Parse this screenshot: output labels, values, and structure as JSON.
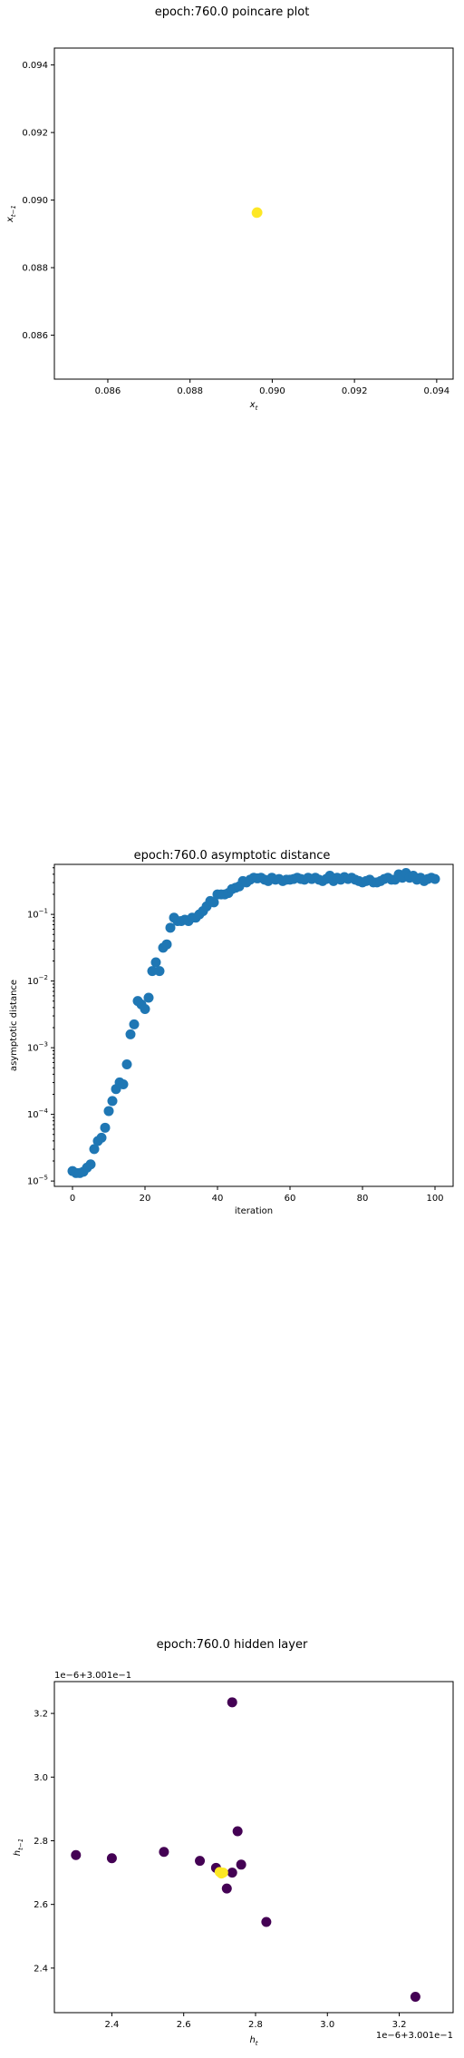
{
  "chart_data": [
    {
      "type": "scatter",
      "title": "epoch:760.0 poincare plot",
      "xlabel": "x_t",
      "ylabel": "x_{t-1}",
      "xlim": [
        0.0847,
        0.0944
      ],
      "ylim": [
        0.0847,
        0.0945
      ],
      "xticks": [
        {
          "v": 0.086,
          "label": "0.086"
        },
        {
          "v": 0.088,
          "label": "0.088"
        },
        {
          "v": 0.09,
          "label": "0.090"
        },
        {
          "v": 0.092,
          "label": "0.092"
        },
        {
          "v": 0.094,
          "label": "0.094"
        }
      ],
      "yticks": [
        {
          "v": 0.086,
          "label": "0.086"
        },
        {
          "v": 0.088,
          "label": "0.088"
        },
        {
          "v": 0.09,
          "label": "0.090"
        },
        {
          "v": 0.092,
          "label": "0.092"
        },
        {
          "v": 0.094,
          "label": "0.094"
        }
      ],
      "grid": false,
      "colors": [
        "#fde725"
      ],
      "points": [
        [
          0.08963,
          0.08964
        ],
        [
          0.08964,
          0.08963
        ],
        [
          0.08962,
          0.08962
        ]
      ]
    },
    {
      "type": "scatter",
      "title": "epoch:760.0 asymptotic distance",
      "xlabel": "iteration",
      "ylabel": "asymptotic distance",
      "log_y": true,
      "xlim": [
        -5,
        105
      ],
      "ylim_exp": [
        -5.08,
        -0.25
      ],
      "xticks": [
        {
          "v": 0,
          "label": "0"
        },
        {
          "v": 20,
          "label": "20"
        },
        {
          "v": 40,
          "label": "40"
        },
        {
          "v": 60,
          "label": "60"
        },
        {
          "v": 80,
          "label": "80"
        },
        {
          "v": 100,
          "label": "100"
        }
      ],
      "yticks": [
        {
          "v": -5,
          "base": "10",
          "exp": "−5"
        },
        {
          "v": -4,
          "base": "10",
          "exp": "−4"
        },
        {
          "v": -3,
          "base": "10",
          "exp": "−3"
        },
        {
          "v": -2,
          "base": "10",
          "exp": "−2"
        },
        {
          "v": -1,
          "base": "10",
          "exp": "−1"
        }
      ],
      "grid": false,
      "colors": [
        "#1f77b4"
      ],
      "y_log10": [
        -4.85,
        -4.88,
        -4.88,
        -4.86,
        -4.8,
        -4.75,
        -4.52,
        -4.4,
        -4.35,
        -4.2,
        -3.95,
        -3.8,
        -3.62,
        -3.52,
        -3.55,
        -3.25,
        -2.8,
        -2.65,
        -2.3,
        -2.35,
        -2.42,
        -2.25,
        -1.85,
        -1.72,
        -1.85,
        -1.5,
        -1.45,
        -1.2,
        -1.05,
        -1.1,
        -1.1,
        -1.08,
        -1.1,
        -1.05,
        -1.05,
        -1.0,
        -0.95,
        -0.88,
        -0.8,
        -0.82,
        -0.7,
        -0.7,
        -0.7,
        -0.68,
        -0.62,
        -0.6,
        -0.58,
        -0.5,
        -0.52,
        -0.48,
        -0.45,
        -0.46,
        -0.45,
        -0.48,
        -0.5,
        -0.45,
        -0.48,
        -0.47,
        -0.5,
        -0.48,
        -0.48,
        -0.47,
        -0.45,
        -0.47,
        -0.48,
        -0.45,
        -0.47,
        -0.45,
        -0.48,
        -0.5,
        -0.47,
        -0.42,
        -0.5,
        -0.45,
        -0.48,
        -0.44,
        -0.47,
        -0.45,
        -0.48,
        -0.5,
        -0.52,
        -0.5,
        -0.48,
        -0.52,
        -0.52,
        -0.5,
        -0.47,
        -0.45,
        -0.48,
        -0.48,
        -0.4,
        -0.45,
        -0.38,
        -0.45,
        -0.42,
        -0.48,
        -0.45,
        -0.5,
        -0.47,
        -0.45,
        -0.47
      ]
    },
    {
      "type": "scatter",
      "title": "epoch:760.0 hidden layer",
      "xlabel": "h_t",
      "ylabel": "h_{t-1}",
      "offset_label": "1e−6+3.001e−1",
      "xlim": [
        2.24,
        3.35
      ],
      "ylim": [
        2.26,
        3.3
      ],
      "xticks": [
        {
          "v": 2.4,
          "label": "2.4"
        },
        {
          "v": 2.6,
          "label": "2.6"
        },
        {
          "v": 2.8,
          "label": "2.8"
        },
        {
          "v": 3.0,
          "label": "3.0"
        },
        {
          "v": 3.2,
          "label": "3.2"
        }
      ],
      "yticks": [
        {
          "v": 2.4,
          "label": "2.4"
        },
        {
          "v": 2.6,
          "label": "2.6"
        },
        {
          "v": 2.8,
          "label": "2.8"
        },
        {
          "v": 3.0,
          "label": "3.0"
        },
        {
          "v": 3.2,
          "label": "3.2"
        }
      ],
      "grid": false,
      "colors": [
        "#440154",
        "#fde725"
      ],
      "points": [
        {
          "x": 2.3,
          "y": 2.755,
          "c": 0
        },
        {
          "x": 2.4,
          "y": 2.745,
          "c": 0
        },
        {
          "x": 2.545,
          "y": 2.765,
          "c": 0
        },
        {
          "x": 2.645,
          "y": 2.737,
          "c": 0
        },
        {
          "x": 2.69,
          "y": 2.715,
          "c": 0
        },
        {
          "x": 2.735,
          "y": 3.235,
          "c": 0
        },
        {
          "x": 2.75,
          "y": 2.83,
          "c": 0
        },
        {
          "x": 2.76,
          "y": 2.725,
          "c": 0
        },
        {
          "x": 2.735,
          "y": 2.7,
          "c": 0
        },
        {
          "x": 2.72,
          "y": 2.65,
          "c": 0
        },
        {
          "x": 2.83,
          "y": 2.545,
          "c": 0
        },
        {
          "x": 3.245,
          "y": 2.31,
          "c": 0
        },
        {
          "x": 2.705,
          "y": 2.697,
          "c": 1
        },
        {
          "x": 2.7,
          "y": 2.702,
          "c": 1
        },
        {
          "x": 2.71,
          "y": 2.7,
          "c": 1
        }
      ]
    }
  ]
}
